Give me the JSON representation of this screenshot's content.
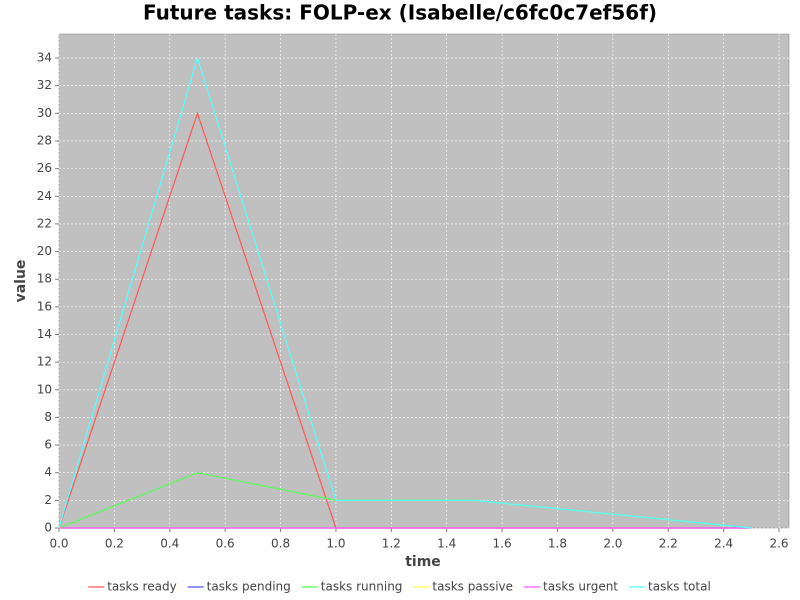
{
  "chart_data": {
    "type": "line",
    "title": "Future tasks: FOLP-ex (Isabelle/c6fc0c7ef56f)",
    "x_label": "time",
    "y_label": "value",
    "x": [
      0,
      0.5,
      1,
      1.5,
      2,
      2.5
    ],
    "series": [
      {
        "name": "tasks ready",
        "color": "#ff5555",
        "values": [
          0,
          30,
          0,
          0,
          0,
          0
        ]
      },
      {
        "name": "tasks pending",
        "color": "#5555ff",
        "values": [
          0,
          0,
          0,
          0,
          0,
          0
        ]
      },
      {
        "name": "tasks running",
        "color": "#55ff55",
        "values": [
          0,
          4,
          2,
          2,
          1,
          0
        ]
      },
      {
        "name": "tasks passive",
        "color": "#ffff55",
        "values": [
          0,
          0,
          0,
          0,
          0,
          0
        ]
      },
      {
        "name": "tasks urgent",
        "color": "#ff55ff",
        "values": [
          0,
          0,
          0,
          0,
          0,
          0
        ]
      },
      {
        "name": "tasks total",
        "color": "#55ffff",
        "values": [
          0,
          34,
          2,
          2,
          1,
          0
        ]
      }
    ],
    "xlim": [
      0,
      2.636
    ],
    "ylim": [
      0,
      35.74
    ],
    "xticks": [
      {
        "value": 0,
        "label": "0.0"
      },
      0.2,
      0.4,
      0.6,
      0.8,
      {
        "value": 1,
        "label": "1.0"
      },
      1.2,
      1.4,
      1.6,
      1.8,
      {
        "value": 2,
        "label": "2.0"
      },
      2.2,
      2.4,
      2.6
    ],
    "yticks": [
      0,
      2,
      4,
      6,
      8,
      10,
      12,
      14,
      16,
      18,
      20,
      22,
      24,
      26,
      28,
      30,
      32,
      34
    ],
    "grid": true,
    "legend": "bottom"
  }
}
